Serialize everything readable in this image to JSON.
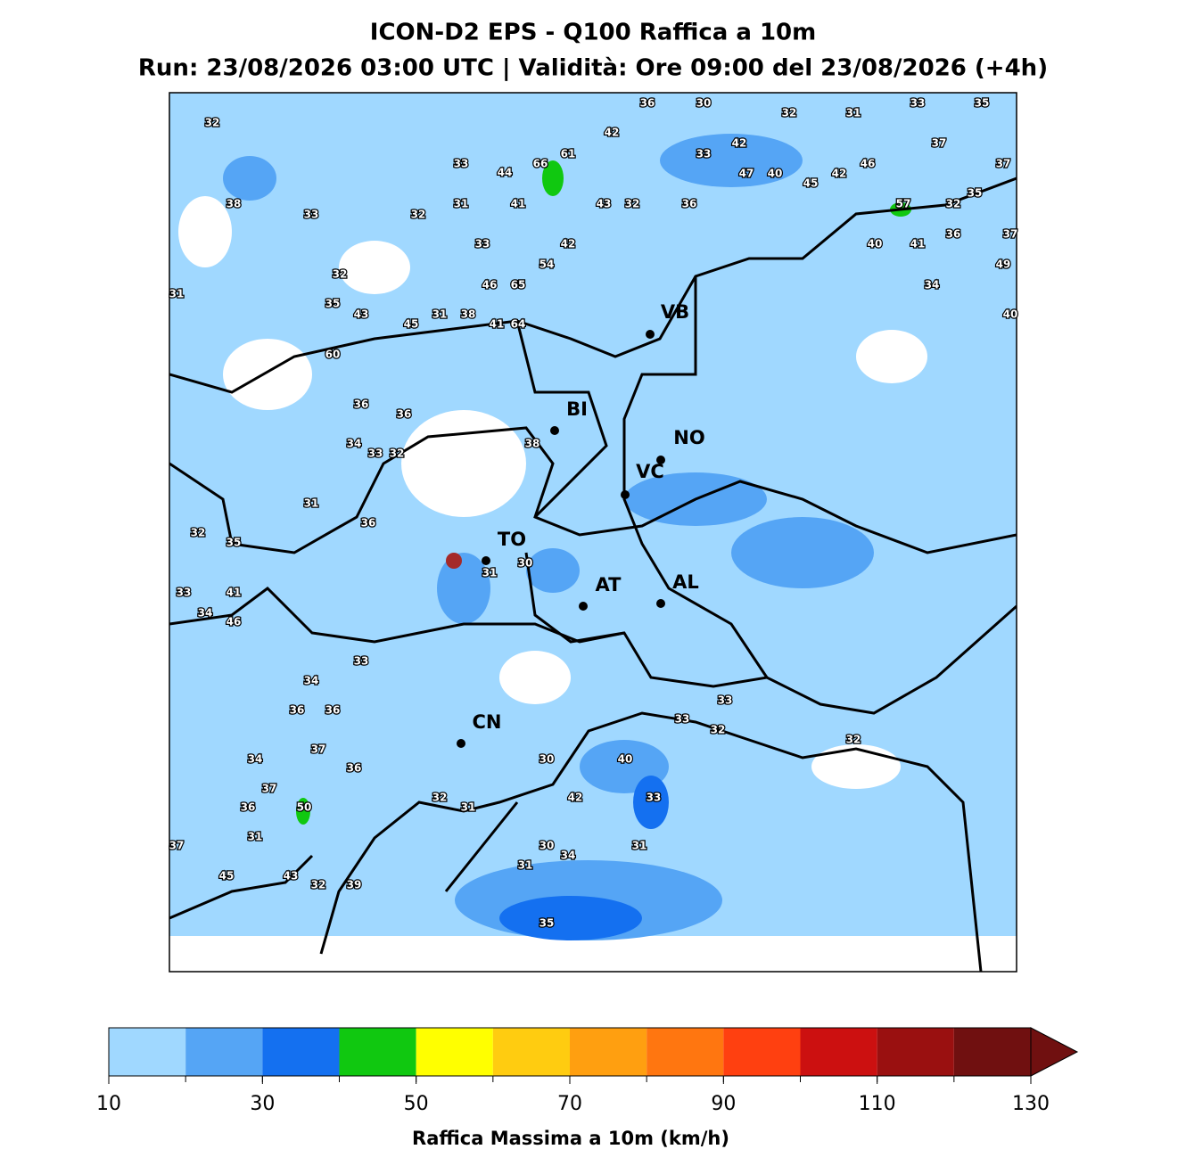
{
  "header": {
    "title": "ICON-D2 EPS - Q100 Raffica a 10m",
    "subtitle": "Run: 23/08/2026 03:00 UTC | Validità: Ore 09:00 del 23/08/2026 (+4h)"
  },
  "map": {
    "cities": [
      "VB",
      "BI",
      "NO",
      "VC",
      "TO",
      "AT",
      "AL",
      "CN"
    ],
    "maxima": [
      32,
      36,
      30,
      32,
      31,
      33,
      35,
      42,
      61,
      42,
      33,
      37,
      33,
      44,
      66,
      47,
      40,
      45,
      42,
      46,
      37,
      38,
      33,
      32,
      31,
      41,
      43,
      32,
      36,
      57,
      32,
      35,
      33,
      42,
      40,
      41,
      36,
      37,
      54,
      49,
      31,
      32,
      46,
      65,
      34,
      35,
      43,
      45,
      31,
      38,
      41,
      64,
      40,
      60,
      36,
      36,
      38,
      34,
      33,
      32,
      31,
      36,
      32,
      35,
      31,
      30,
      33,
      41,
      34,
      46,
      33,
      34,
      36,
      36,
      33,
      33,
      32,
      32,
      37,
      34,
      30,
      40,
      36,
      37,
      42,
      33,
      32,
      31,
      36,
      50,
      31,
      37,
      30,
      34,
      31,
      31,
      45,
      43,
      32,
      39,
      35
    ]
  },
  "colorbar": {
    "label": "Raffica Massima a 10m (km/h)",
    "lim": [
      10,
      130
    ],
    "levels": [
      10,
      20,
      30,
      40,
      50,
      60,
      70,
      80,
      90,
      100,
      110,
      120,
      130
    ],
    "colors": [
      "#a0d8ff",
      "#55a5f5",
      "#1470f0",
      "#10c810",
      "#ffff00",
      "#ffcc10",
      "#ff9f10",
      "#ff7610",
      "#ff4010",
      "#cc1010",
      "#9a1010",
      "#701010"
    ],
    "ticks": [
      10,
      30,
      50,
      70,
      90,
      110,
      130
    ]
  }
}
